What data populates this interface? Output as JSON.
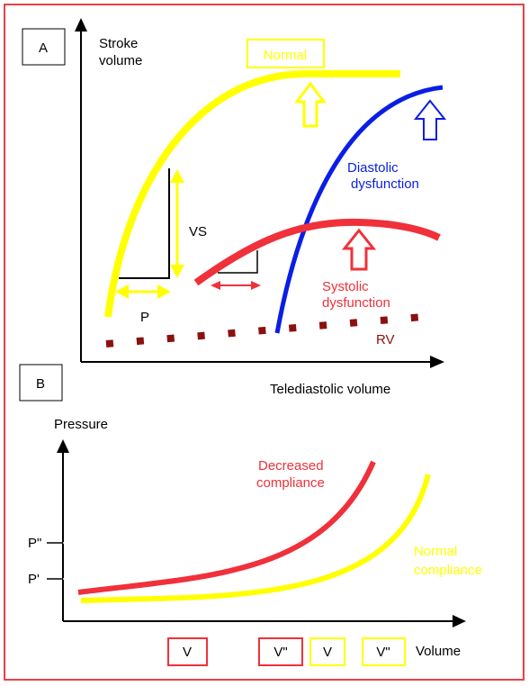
{
  "panel_a": {
    "label": "A",
    "y_axis_label_line1": "Stroke",
    "y_axis_label_line2": "volume",
    "x_axis_label": "Telediastolic volume",
    "normal_label": "Normal",
    "diastolic_label_line1": "Diastolic",
    "diastolic_label_line2": "dysfunction",
    "systolic_label_line1": "Systolic",
    "systolic_label_line2": "dysfunction",
    "vs_label": "VS",
    "p_label": "P",
    "rv_label": "RV"
  },
  "panel_b": {
    "label": "B",
    "y_axis_label": "Pressure",
    "x_axis_label": "Volume",
    "p_double_prime": "P\"",
    "p_prime": "P'",
    "decreased_label_line1": "Decreased",
    "decreased_label_line2": "compliance",
    "normal_label_line1": "Normal",
    "normal_label_line2": "compliance",
    "box_v_red": "V",
    "box_vpp_red": "V\"",
    "box_v_yellow": "V",
    "box_vpp_yellow": "V\""
  },
  "colors": {
    "frame": "#e8404a",
    "normal": "#ffff00",
    "diastolic": "#0a1ee6",
    "systolic": "#f0303a",
    "rv": "#8b1010",
    "axis": "#000000"
  }
}
